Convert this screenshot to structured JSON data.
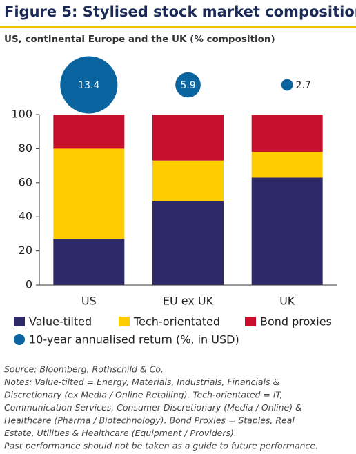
{
  "chart_data": {
    "type": "bar",
    "stacked": true,
    "title": "Figure 5: Stylised stock market composition",
    "subtitle": "US, continental Europe and the UK (% composition)",
    "categories": [
      "US",
      "EU ex UK",
      "UK"
    ],
    "series": [
      {
        "name": "Value-tilted",
        "color": "#2e2a6a",
        "values": [
          27,
          49,
          63
        ]
      },
      {
        "name": "Tech-orientated",
        "color": "#ffcc00",
        "values": [
          53,
          24,
          15
        ]
      },
      {
        "name": "Bond proxies",
        "color": "#c8102e",
        "values": [
          20,
          27,
          22
        ]
      }
    ],
    "bubbles": {
      "name": "10-year annualised return (%, in USD)",
      "color": "#0a64a0",
      "values": [
        13.4,
        5.9,
        2.7
      ]
    },
    "ylim": [
      0,
      100
    ],
    "yticks": [
      0,
      20,
      40,
      60,
      80,
      100
    ],
    "notes": [
      "Source: Bloomberg, Rothschild & Co.",
      "Notes: Value-tilted = Energy, Materials, Industrials, Financials &",
      "Discretionary (ex Media / Online Retailing). Tech-orientated = IT,",
      "Communication Services, Consumer Discretionary (Media / Online) &",
      "Healthcare (Pharma / Biotechnology). Bond Proxies = Staples, Real",
      "Estate, Utilities & Healthcare (Equipment / Providers).",
      "Past performance should not be taken as a guide to future performance."
    ]
  }
}
